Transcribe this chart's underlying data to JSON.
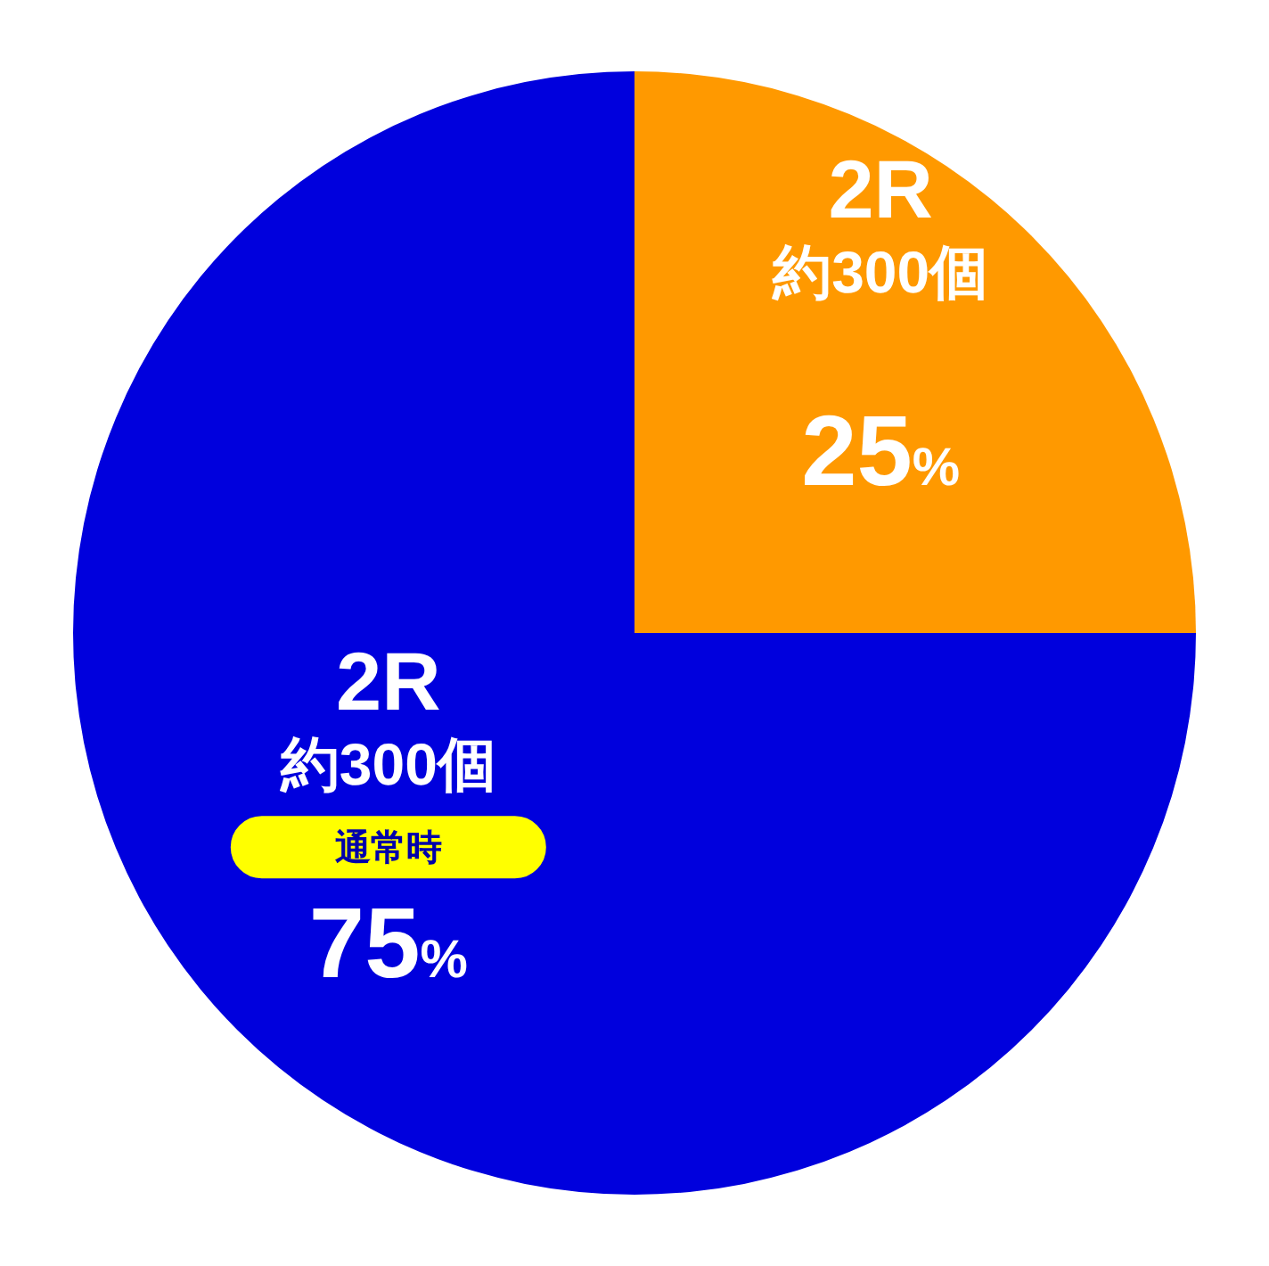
{
  "chart_data": {
    "type": "pie",
    "categories": [
      null,
      "通常時"
    ],
    "values": [
      25,
      75
    ],
    "colors": [
      "#ff9900",
      "#0000dd"
    ],
    "value_labels": [
      "25%",
      "75%"
    ],
    "annotations": [
      "2R\n約300個",
      "2R\n約300個"
    ]
  }
}
